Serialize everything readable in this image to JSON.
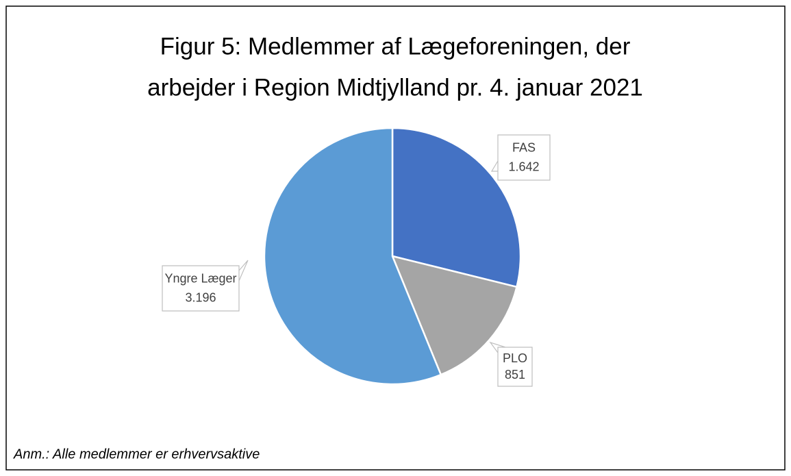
{
  "chart_data": {
    "type": "pie",
    "title": [
      "Figur 5: Medlemmer af Lægeforeningen, der",
      "arbejder i Region Midtjylland pr. 4. januar 2021"
    ],
    "categories": [
      "FAS",
      "PLO",
      "Yngre Læger"
    ],
    "values": [
      1642,
      851,
      3196
    ],
    "value_labels": [
      "1.642",
      "851",
      "3.196"
    ],
    "colors": [
      "#4472c4",
      "#a5a5a5",
      "#5b9bd5"
    ],
    "annotation": "Anm.: Alle medlemmer er erhvervsaktive"
  }
}
